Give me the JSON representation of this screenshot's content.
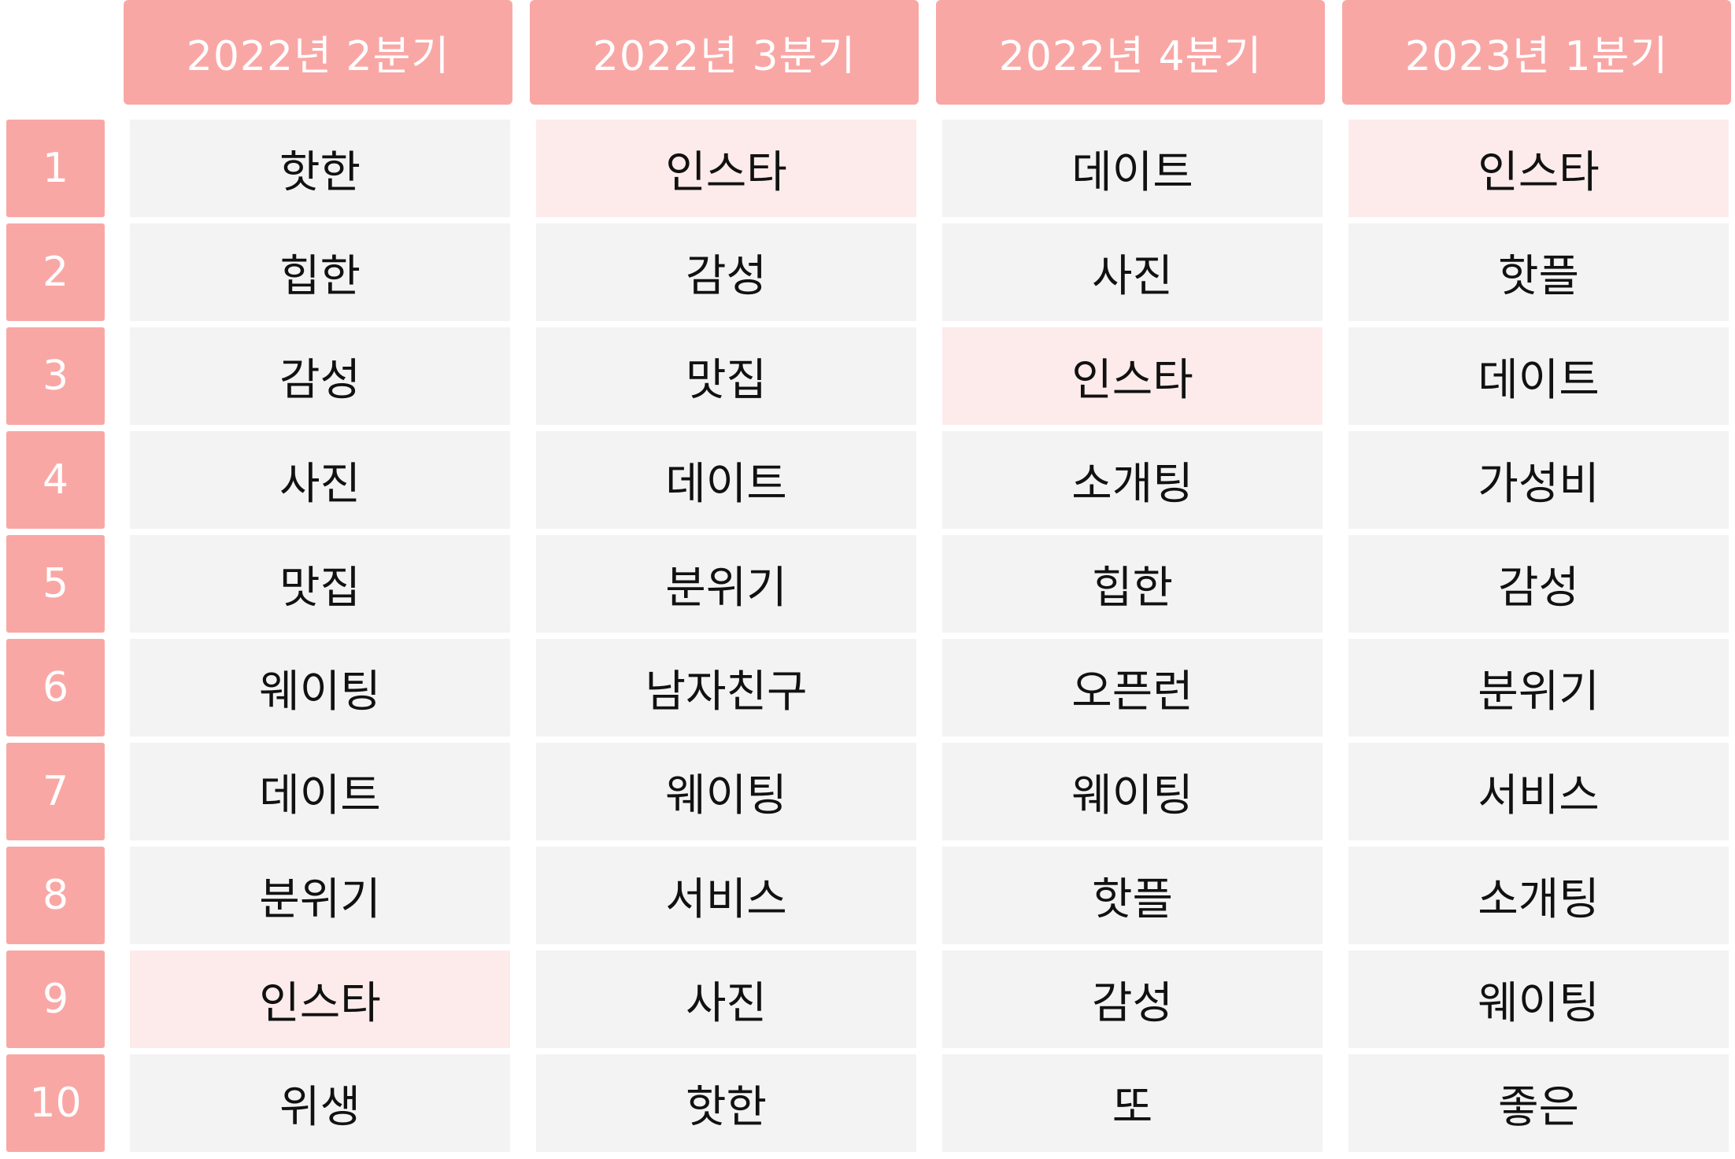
{
  "chart_data": {
    "type": "table",
    "columns": [
      "2022년 2분기",
      "2022년 3분기",
      "2022년 4분기",
      "2023년 1분기"
    ],
    "ranks": [
      "1",
      "2",
      "3",
      "4",
      "5",
      "6",
      "7",
      "8",
      "9",
      "10"
    ],
    "rows": [
      [
        "핫한",
        "인스타",
        "데이트",
        "인스타"
      ],
      [
        "힙한",
        "감성",
        "사진",
        "핫플"
      ],
      [
        "감성",
        "맛집",
        "인스타",
        "데이트"
      ],
      [
        "사진",
        "데이트",
        "소개팅",
        "가성비"
      ],
      [
        "맛집",
        "분위기",
        "힙한",
        "감성"
      ],
      [
        "웨이팅",
        "남자친구",
        "오픈런",
        "분위기"
      ],
      [
        "데이트",
        "웨이팅",
        "웨이팅",
        "서비스"
      ],
      [
        "분위기",
        "서비스",
        "핫플",
        "소개팅"
      ],
      [
        "인스타",
        "사진",
        "감성",
        "웨이팅"
      ],
      [
        "위생",
        "핫한",
        "또",
        "좋은"
      ]
    ],
    "highlight_keyword": "인스타",
    "colors": {
      "header_bg": "#f9a7a5",
      "cell_bg": "#f3f3f3",
      "highlight_bg": "#fdebeb",
      "text": "#111111",
      "header_text": "#ffffff"
    }
  }
}
